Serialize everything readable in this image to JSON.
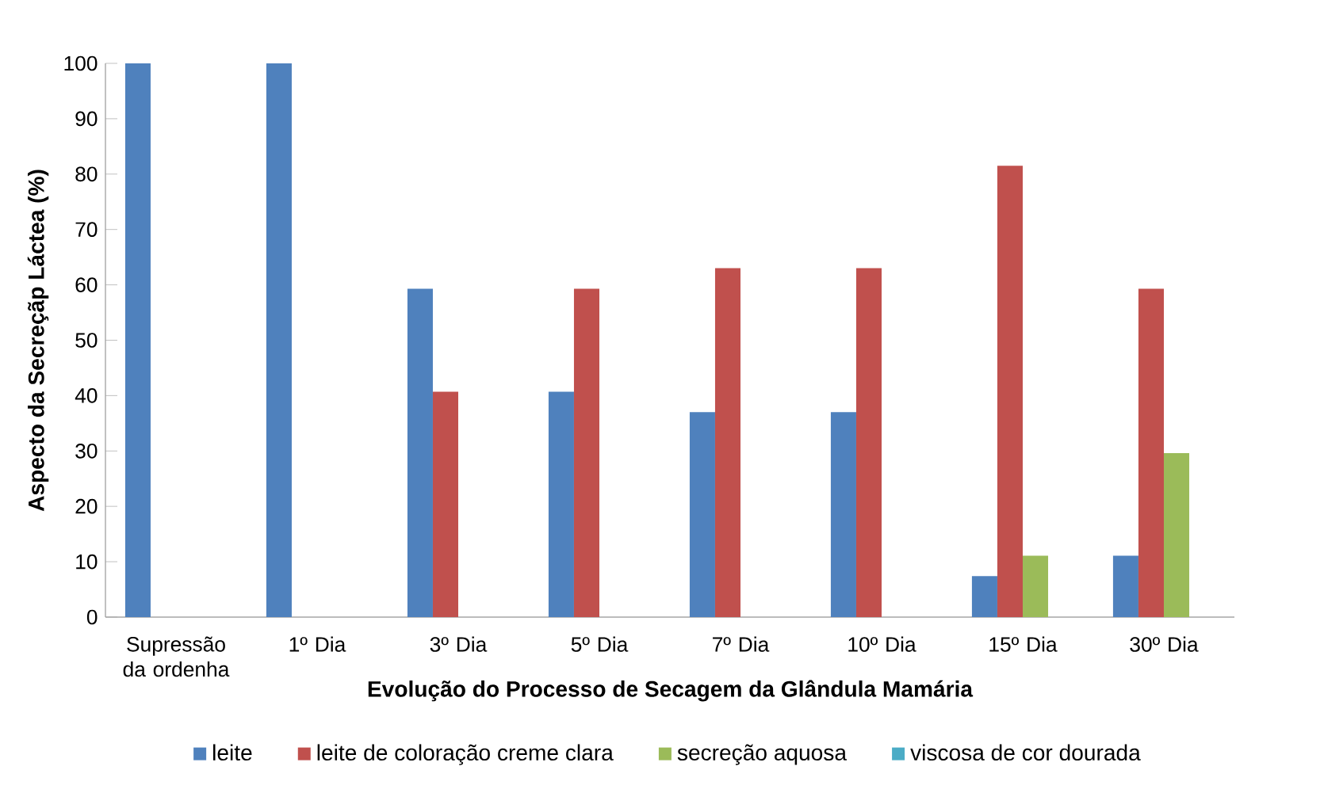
{
  "chart_data": {
    "type": "bar",
    "xlabel": "Evolução do Processo de Secagem da Glândula Mamária",
    "ylabel": "Aspecto da Secreçãp Láctea (%)",
    "categories": [
      "Supressão da ordenha",
      "1º Dia",
      "3º Dia",
      "5º Dia",
      "7º Dia",
      "10º Dia",
      "15º Dia",
      "30º Dia"
    ],
    "series": [
      {
        "name": "leite",
        "color": "#4f81bd",
        "values": [
          100,
          100,
          59.3,
          40.7,
          37,
          37,
          7.4,
          11.1
        ]
      },
      {
        "name": "leite de coloração creme clara",
        "color": "#c0504d",
        "values": [
          0,
          0,
          40.7,
          59.3,
          63,
          63,
          81.5,
          59.3
        ]
      },
      {
        "name": "secreção aquosa",
        "color": "#9bbb59",
        "values": [
          0,
          0,
          0,
          0,
          0,
          0,
          11.1,
          29.6
        ]
      },
      {
        "name": "viscosa de cor dourada",
        "color": "#4bacc6",
        "values": [
          0,
          0,
          0,
          0,
          0,
          0,
          0,
          0
        ]
      }
    ],
    "ylim": [
      0,
      100
    ],
    "yticks": [
      0,
      10,
      20,
      30,
      40,
      50,
      60,
      70,
      80,
      90,
      100
    ],
    "legend": "bottom"
  }
}
